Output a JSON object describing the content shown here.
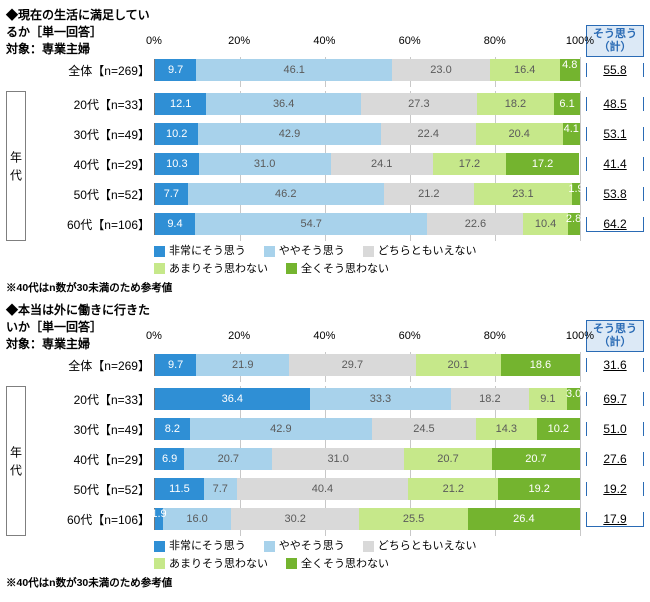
{
  "colors": {
    "c1": "#2f8fd5",
    "c2": "#a8d2eb",
    "c3": "#d9d9d9",
    "c4": "#c6e88a",
    "c5": "#74b42f",
    "text_c1": "#ffffff",
    "text_c2": "#5a5a5a",
    "text_c3": "#5a5a5a",
    "text_c4": "#5a5a5a",
    "text_c5": "#ffffff"
  },
  "legend": {
    "l1": "非常にそう思う",
    "l2": "ややそう思う",
    "l3": "どちらともいえない",
    "l4": "あまりそう思わない",
    "l5": "全くそう思わない"
  },
  "axis": {
    "ticks": [
      0,
      20,
      40,
      60,
      80,
      100
    ]
  },
  "sum_header": {
    "line1": "そう思う",
    "line2": "（計）"
  },
  "group_label": "年代",
  "charts": [
    {
      "title": "◆現在の生活に満足しているか［単一回答］",
      "subtitle": "対象：専業主婦",
      "note": "※40代はn数が30未満のため参考値",
      "total_row": {
        "label": "全体【n=269】",
        "v": [
          9.7,
          46.1,
          23.0,
          16.4,
          4.8
        ],
        "sum": "55.8"
      },
      "rows": [
        {
          "label": "20代【n=33】",
          "v": [
            12.1,
            36.4,
            27.3,
            18.2,
            6.1
          ],
          "sum": "48.5"
        },
        {
          "label": "30代【n=49】",
          "v": [
            10.2,
            42.9,
            22.4,
            20.4,
            4.1
          ],
          "sum": "53.1"
        },
        {
          "label": "40代【n=29】",
          "v": [
            10.3,
            31.0,
            24.1,
            17.2,
            17.2
          ],
          "sum": "41.4"
        },
        {
          "label": "50代【n=52】",
          "v": [
            7.7,
            46.2,
            21.2,
            23.1,
            1.9
          ],
          "sum": "53.8"
        },
        {
          "label": "60代【n=106】",
          "v": [
            9.4,
            54.7,
            22.6,
            10.4,
            2.8
          ],
          "sum": "64.2"
        }
      ]
    },
    {
      "title": "◆本当は外に働きに行きたいか［単一回答］",
      "subtitle": "対象：専業主婦",
      "note": "※40代はn数が30未満のため参考値",
      "total_row": {
        "label": "全体【n=269】",
        "v": [
          9.7,
          21.9,
          29.7,
          20.1,
          18.6
        ],
        "sum": "31.6"
      },
      "rows": [
        {
          "label": "20代【n=33】",
          "v": [
            36.4,
            33.3,
            18.2,
            9.1,
            3.0
          ],
          "sum": "69.7"
        },
        {
          "label": "30代【n=49】",
          "v": [
            8.2,
            42.9,
            24.5,
            14.3,
            10.2
          ],
          "sum": "51.0"
        },
        {
          "label": "40代【n=29】",
          "v": [
            6.9,
            20.7,
            31.0,
            20.7,
            20.7
          ],
          "sum": "27.6"
        },
        {
          "label": "50代【n=52】",
          "v": [
            11.5,
            7.7,
            40.4,
            21.2,
            19.2
          ],
          "sum": "19.2"
        },
        {
          "label": "60代【n=106】",
          "v": [
            1.9,
            16.0,
            30.2,
            25.5,
            26.4
          ],
          "sum": "17.9"
        }
      ]
    }
  ]
}
